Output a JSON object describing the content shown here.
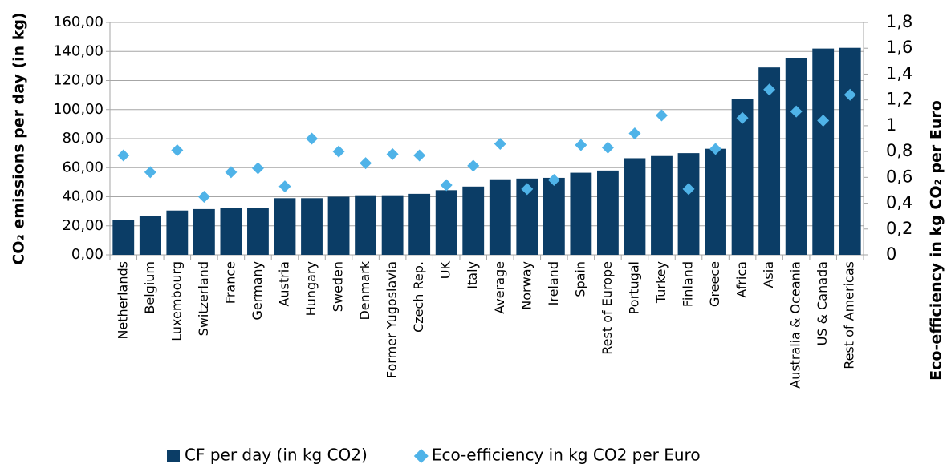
{
  "chart_data": {
    "type": "bar",
    "categories": [
      "Netherlands",
      "Belgium",
      "Luxembourg",
      "Switzerland",
      "France",
      "Germany",
      "Austria",
      "Hungary",
      "Sweden",
      "Denmark",
      "Former Yugoslavia",
      "Czech Rep.",
      "UK",
      "Italy",
      "Average",
      "Norway",
      "Ireland",
      "Spain",
      "Rest of Europe",
      "Portugal",
      "Turkey",
      "Finland",
      "Greece",
      "Africa",
      "Asia",
      "Australia & Oceania",
      "US & Canada",
      "Rest of Americas"
    ],
    "series": [
      {
        "name": "CF per day (in kg CO2)",
        "color": "#0b3d66",
        "type": "bar",
        "values": [
          24,
          27,
          30.5,
          31.5,
          32,
          32.5,
          39,
          39,
          40,
          41,
          41,
          42,
          44.5,
          47,
          52,
          52.5,
          53,
          56.5,
          58,
          66.5,
          68,
          70,
          73,
          107.5,
          129,
          135.5,
          142,
          142.5
        ]
      },
      {
        "name": "Eco-efficiency in kg CO2 per Euro",
        "color": "#4fb3e8",
        "type": "scatter",
        "axis": "y2",
        "values": [
          0.77,
          0.64,
          0.81,
          0.45,
          0.64,
          0.67,
          0.53,
          0.9,
          0.8,
          0.71,
          0.78,
          0.77,
          0.54,
          0.69,
          0.86,
          0.51,
          0.58,
          0.85,
          0.83,
          0.94,
          1.08,
          0.51,
          0.82,
          1.06,
          1.28,
          1.11,
          1.04,
          1.24
        ]
      }
    ],
    "y_label": "CO₂ emissions per day (in kg)",
    "y2_label": "Eco-efficiency in kg CO₂ per Euro",
    "ylim": [
      0,
      160
    ],
    "yticks": [
      {
        "value": 0,
        "label": "0,00"
      },
      {
        "value": 20,
        "label": "20,00"
      },
      {
        "value": 40,
        "label": "40,00"
      },
      {
        "value": 60,
        "label": "60,00"
      },
      {
        "value": 80,
        "label": "80,00"
      },
      {
        "value": 100,
        "label": "100,00"
      },
      {
        "value": 120,
        "label": "120,00"
      },
      {
        "value": 140,
        "label": "140,00"
      },
      {
        "value": 160,
        "label": "160,00"
      }
    ],
    "y2lim": [
      0,
      1.8
    ],
    "y2ticks": [
      0,
      {
        "value": 0.2,
        "label": "0,2"
      },
      {
        "value": 0.4,
        "label": "0,4"
      },
      {
        "value": 0.6,
        "label": "0,6"
      },
      {
        "value": 0.8,
        "label": "0,8"
      },
      1,
      {
        "value": 1.2,
        "label": "1,2"
      },
      {
        "value": 1.4,
        "label": "1,4"
      },
      {
        "value": 1.6,
        "label": "1,6"
      },
      {
        "value": 1.8,
        "label": "1,8"
      }
    ],
    "grid": true,
    "legend": "bottom"
  }
}
